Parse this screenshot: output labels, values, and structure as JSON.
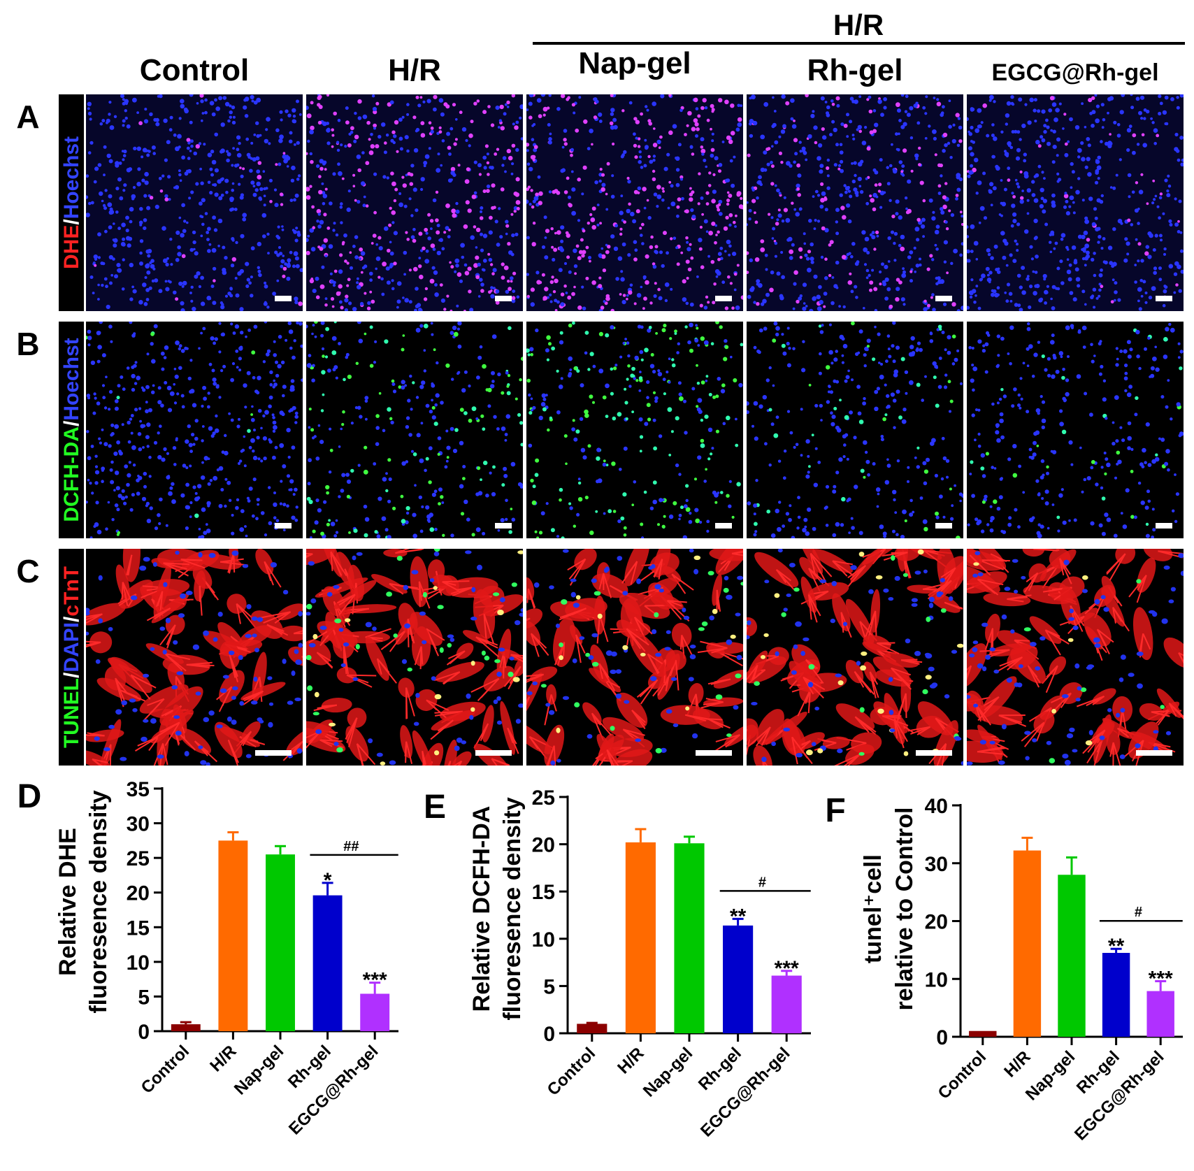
{
  "figure": {
    "top_group_label": "H/R",
    "columns": [
      "Control",
      "H/R",
      "Nap-gel",
      "Rh-gel",
      "EGCG@Rh-gel"
    ],
    "rows": [
      {
        "letter": "A",
        "stain": [
          {
            "text": "DHE",
            "color": "#ff2222"
          },
          {
            "text": "/",
            "color": "#ffffff"
          },
          {
            "text": "Hoechst",
            "color": "#3344ff"
          }
        ]
      },
      {
        "letter": "B",
        "stain": [
          {
            "text": "DCFH-DA",
            "color": "#22ff22"
          },
          {
            "text": "/",
            "color": "#ffffff"
          },
          {
            "text": "Hoechst",
            "color": "#3344ff"
          }
        ]
      },
      {
        "letter": "C",
        "stain": [
          {
            "text": "TUNEL",
            "color": "#22ff22"
          },
          {
            "text": "/",
            "color": "#ffffff"
          },
          {
            "text": "DAPI",
            "color": "#3344ff"
          },
          {
            "text": "/",
            "color": "#ffffff"
          },
          {
            "text": "cTnT",
            "color": "#ff2222"
          }
        ]
      }
    ],
    "colors": {
      "Control": "#8b0000",
      "H/R": "#ff6a00",
      "Nap-gel": "#00c800",
      "Rh-gel": "#0000cc",
      "EGCG@Rh-gel": "#b030ff"
    }
  },
  "chart_data": [
    {
      "panel": "D",
      "type": "bar",
      "ylabel_lines": [
        "Relative DHE",
        "fluoresence density"
      ],
      "categories": [
        "Control",
        "H/R",
        "Nap-gel",
        "Rh-gel",
        "EGCG@Rh-gel"
      ],
      "values": [
        1.0,
        27.5,
        25.5,
        19.6,
        5.4
      ],
      "errors": [
        0.3,
        1.2,
        1.2,
        1.8,
        1.6
      ],
      "significance": [
        "",
        "",
        "",
        "*",
        "***"
      ],
      "comparison": {
        "from": 3,
        "to": 4,
        "label": "##"
      },
      "ylim": [
        0,
        35
      ],
      "yticks": [
        0,
        5,
        10,
        15,
        20,
        25,
        30,
        35
      ]
    },
    {
      "panel": "E",
      "type": "bar",
      "ylabel_lines": [
        "Relative DCFH-DA",
        "fluoresence density"
      ],
      "categories": [
        "Control",
        "H/R",
        "Nap-gel",
        "Rh-gel",
        "EGCG@Rh-gel"
      ],
      "values": [
        1.0,
        20.2,
        20.1,
        11.4,
        6.1
      ],
      "errors": [
        0.1,
        1.4,
        0.7,
        0.7,
        0.5
      ],
      "significance": [
        "",
        "",
        "",
        "**",
        "***"
      ],
      "comparison": {
        "from": 3,
        "to": 4,
        "label": "#"
      },
      "ylim": [
        0,
        25
      ],
      "yticks": [
        0,
        5,
        10,
        15,
        20,
        25
      ]
    },
    {
      "panel": "F",
      "type": "bar",
      "ylabel_lines": [
        "tunel⁺cell",
        "relative to Control"
      ],
      "categories": [
        "Control",
        "H/R",
        "Nap-gel",
        "Rh-gel",
        "EGCG@Rh-gel"
      ],
      "values": [
        1.0,
        32.2,
        28.0,
        14.5,
        7.9
      ],
      "errors": [
        0.0,
        2.2,
        3.0,
        0.7,
        1.7
      ],
      "significance": [
        "",
        "",
        "",
        "**",
        "***"
      ],
      "comparison": {
        "from": 3,
        "to": 4,
        "label": "#"
      },
      "ylim": [
        0,
        40
      ],
      "yticks": [
        0,
        10,
        20,
        30,
        40
      ]
    }
  ]
}
